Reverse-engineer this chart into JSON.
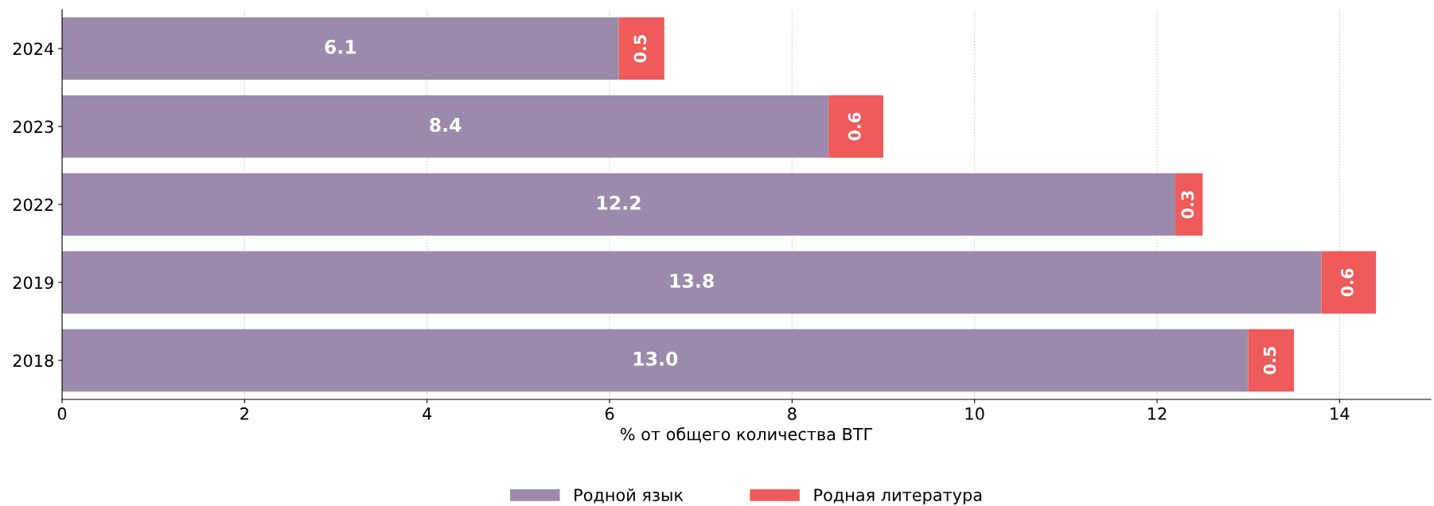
{
  "chart_data": {
    "type": "bar",
    "orientation": "horizontal",
    "stacked": true,
    "categories": [
      "2024",
      "2023",
      "2022",
      "2019",
      "2018"
    ],
    "series": [
      {
        "name": "Родной язык",
        "color": "#9b8aab",
        "values": [
          6.1,
          8.4,
          12.2,
          13.8,
          13.0
        ],
        "value_labels": [
          "6.1",
          "8.4",
          "12.2",
          "13.8",
          "13.0"
        ]
      },
      {
        "name": "Родная литература",
        "color": "#ef5a5a",
        "values": [
          0.5,
          0.6,
          0.3,
          0.6,
          0.5
        ]
      }
    ],
    "xlabel": "% от общего количества ВТГ",
    "xlim": [
      0,
      15
    ],
    "xticks": [
      0,
      2,
      4,
      6,
      8,
      10,
      12,
      14
    ],
    "grid": "x",
    "legend": "bottom",
    "data_labels": true
  }
}
